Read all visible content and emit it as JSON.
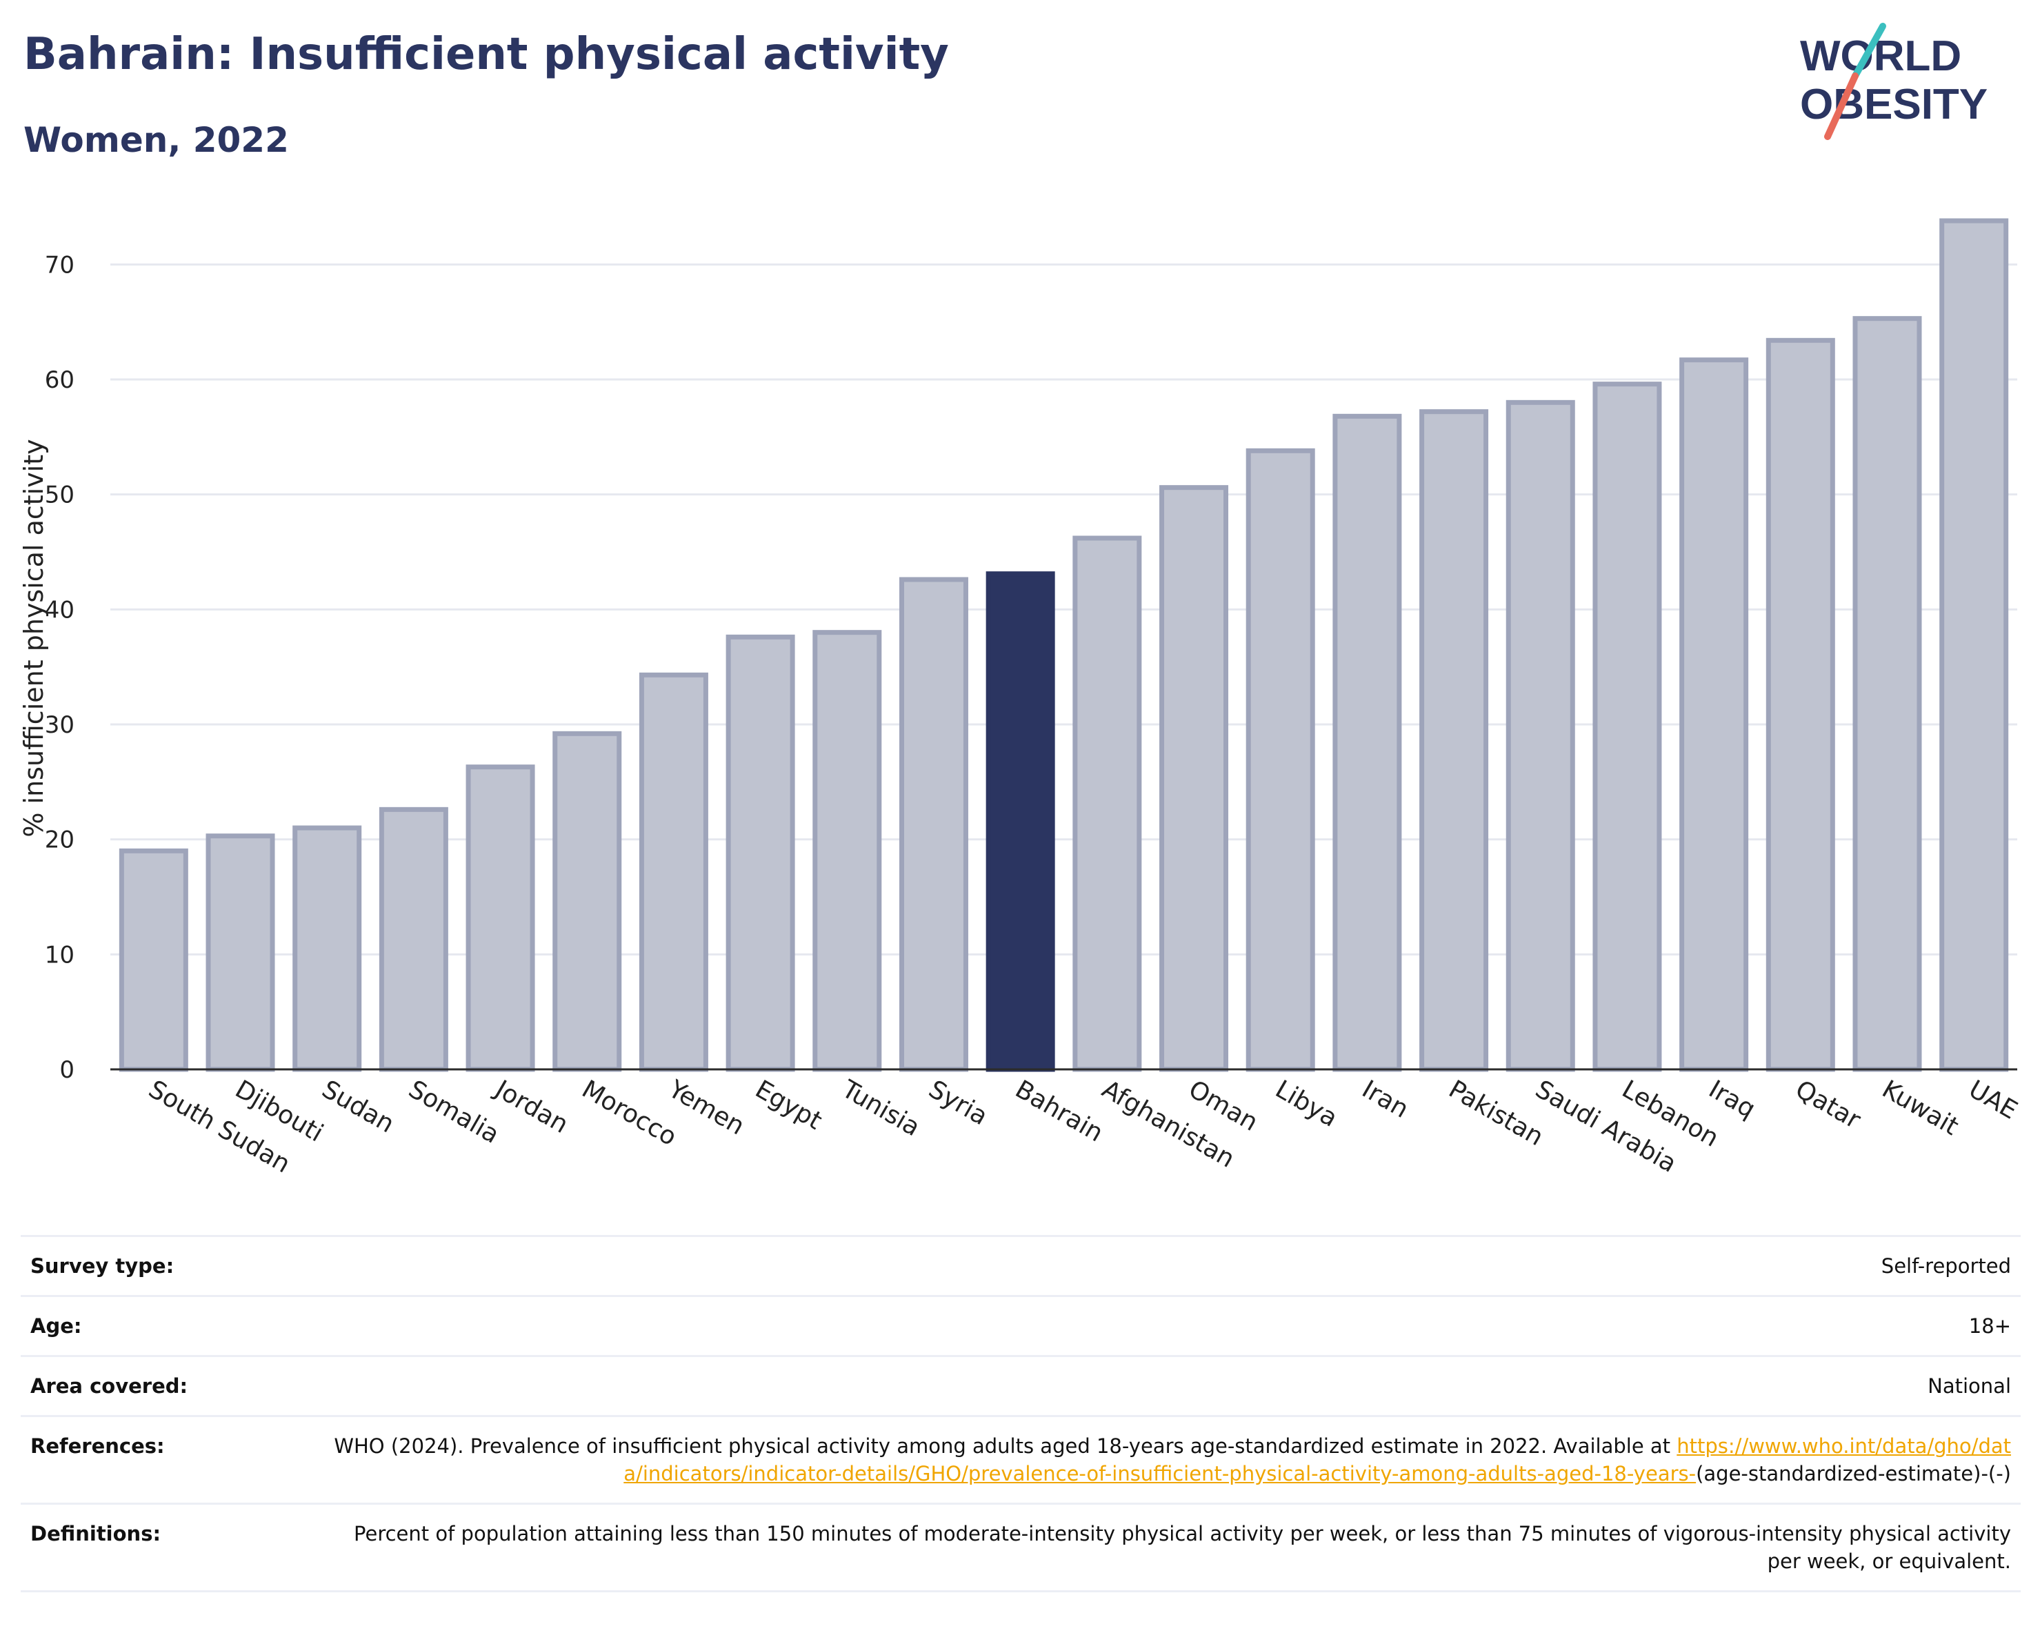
{
  "header": {
    "title": "Bahrain: Insufficient physical activity",
    "subtitle": "Women, 2022"
  },
  "logo": {
    "line1": "WORLD",
    "line2": "OBESITY"
  },
  "colors": {
    "highlight": "#2b3561",
    "bar_fill": "#bfc3d0",
    "bar_stroke": "#9ea4ba",
    "title": "#2b3561",
    "link": "#f0a500",
    "logo_teal": "#3bbfbf",
    "logo_coral": "#e86a5a"
  },
  "chart_data": {
    "type": "bar",
    "ylabel": "% insufficient physical activity",
    "xlabel": "",
    "ylim": [
      0,
      75
    ],
    "yticks": [
      0,
      10,
      20,
      30,
      40,
      50,
      60,
      70
    ],
    "grid": true,
    "highlight": "Bahrain",
    "categories": [
      "South Sudan",
      "Djibouti",
      "Sudan",
      "Somalia",
      "Jordan",
      "Morocco",
      "Yemen",
      "Egypt",
      "Tunisia",
      "Syria",
      "Bahrain",
      "Afghanistan",
      "Oman",
      "Libya",
      "Iran",
      "Pakistan",
      "Saudi Arabia",
      "Lebanon",
      "Iraq",
      "Qatar",
      "Kuwait",
      "UAE"
    ],
    "values": [
      19.0,
      20.3,
      21.0,
      22.6,
      26.3,
      29.2,
      34.3,
      37.6,
      38.0,
      42.6,
      43.1,
      46.2,
      50.6,
      53.8,
      56.8,
      57.2,
      58.0,
      59.6,
      61.7,
      63.4,
      65.3,
      73.8
    ]
  },
  "info": {
    "survey_label": "Survey type:",
    "survey_value": "Self-reported",
    "age_label": "Age:",
    "age_value": "18+",
    "area_label": "Area covered:",
    "area_value": "National",
    "references_label": "References:",
    "references_text": "WHO (2024). Prevalence of insufficient physical activity among adults aged 18-years age-standardized estimate in 2022. Available at",
    "references_link": "https://www.who.int/data/gho/data/indicators/indicator-details/GHO/prevalence-of-insufficient-physical-activity-among-adults-aged-18-years-",
    "references_suffix": "(age-standardized-estimate)-(-)",
    "definitions_label": "Definitions:",
    "definitions_value": "Percent of population attaining less than 150 minutes of moderate-intensity physical activity per week, or less than 75 minutes of vigorous-intensity physical activity per week, or equivalent."
  }
}
